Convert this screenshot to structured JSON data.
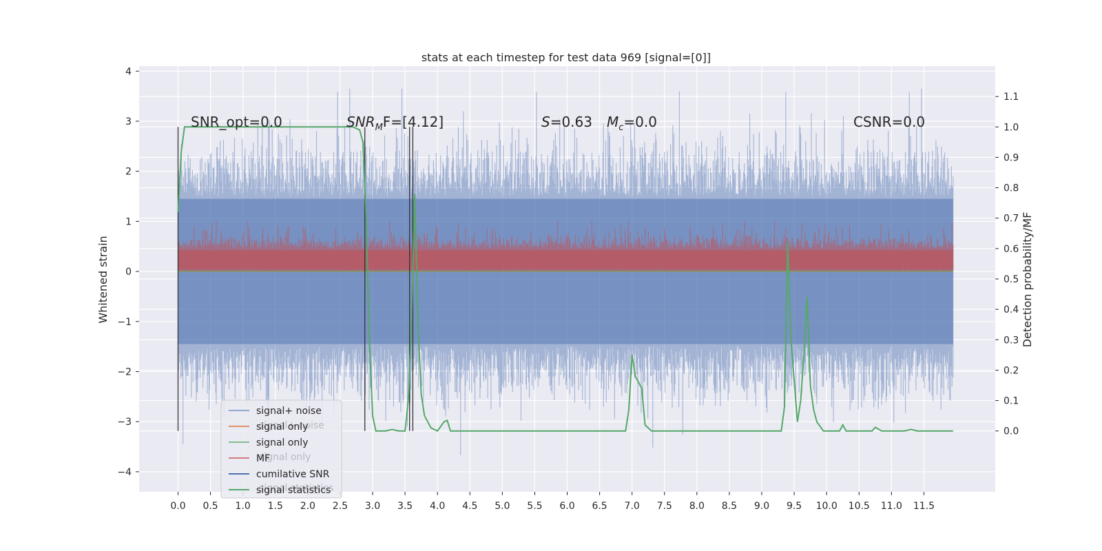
{
  "chart_data": {
    "type": "line",
    "title": "stats at each timestep for test data 969 [signal=[0]]",
    "xlabel": "",
    "ylabel": "Whitened strain",
    "y2label": "Detection probability/MF",
    "xlim": [
      -0.6,
      12.6
    ],
    "ylim": [
      -4.4,
      4.1
    ],
    "y2lim": [
      -0.2,
      1.2
    ],
    "xticks": [
      0.0,
      0.5,
      1.0,
      1.5,
      2.0,
      2.5,
      3.0,
      3.5,
      4.0,
      4.5,
      5.0,
      5.5,
      6.0,
      6.5,
      7.0,
      7.5,
      8.0,
      8.5,
      9.0,
      9.5,
      10.0,
      10.5,
      11.0,
      11.5
    ],
    "xtick_labels": [
      "0.0",
      "0.5",
      "1.0",
      "1.5",
      "2.0",
      "2.5",
      "3.0",
      "3.5",
      "4.0",
      "4.5",
      "5.0",
      "5.5",
      "6.0",
      "6.5",
      "7.0",
      "7.5",
      "8.0",
      "8.5",
      "9.0",
      "9.5",
      "10.0",
      "10.5",
      "11.0",
      "11.5"
    ],
    "yticks": [
      -4,
      -3,
      -2,
      -1,
      0,
      1,
      2,
      3,
      4
    ],
    "ytick_labels": [
      "−4",
      "−3",
      "−2",
      "−1",
      "0",
      "1",
      "2",
      "3",
      "4"
    ],
    "y2ticks": [
      0.0,
      0.1,
      0.2,
      0.3,
      0.4,
      0.5,
      0.6,
      0.7,
      0.8,
      0.9,
      1.0,
      1.1
    ],
    "y2tick_labels": [
      "0.0",
      "0.1",
      "0.2",
      "0.3",
      "0.4",
      "0.5",
      "0.6",
      "0.7",
      "0.8",
      "0.9",
      "1.0",
      "1.1"
    ],
    "grid": true,
    "legend_placement": "lower-left",
    "colors": {
      "background": "#eaeaf2",
      "grid": "#ffffff",
      "signal_noise": "#4c72b0",
      "signal_only_orange": "#dd8452",
      "signal_only_green": "#55a868",
      "mf": "#c44e52",
      "cumulative_snr": "#4c72b0",
      "signal_statistics": "#55a868",
      "markers": "#333333"
    },
    "series": [
      {
        "name": "signal+ noise",
        "style": "dense noise, roughly ±2.5 with spikes to ±3.6",
        "x_range": [
          0.0,
          11.95
        ]
      },
      {
        "name": "signal only",
        "values_constant": 0.0
      },
      {
        "name": "signal only",
        "values_constant": 0.0
      },
      {
        "name": "MF",
        "style": "dense noise from 0 to ~0.5 with spikes to ~1.0",
        "x_range": [
          0.0,
          11.95
        ]
      },
      {
        "name": "cumilative SNR"
      },
      {
        "name": "signal statistics",
        "axis": "right",
        "x": [
          0.0,
          0.05,
          0.1,
          0.2,
          0.3,
          0.5,
          1.0,
          1.5,
          2.0,
          2.5,
          2.7,
          2.8,
          2.85,
          2.9,
          2.95,
          3.0,
          3.05,
          3.1,
          3.2,
          3.3,
          3.4,
          3.5,
          3.55,
          3.6,
          3.65,
          3.7,
          3.75,
          3.8,
          3.9,
          4.0,
          4.1,
          4.15,
          4.2,
          4.3,
          5.0,
          6.0,
          6.9,
          6.95,
          7.0,
          7.05,
          7.1,
          7.15,
          7.2,
          7.3,
          7.6,
          7.8,
          8.0,
          9.0,
          9.3,
          9.35,
          9.4,
          9.45,
          9.55,
          9.6,
          9.65,
          9.7,
          9.75,
          9.8,
          9.85,
          9.95,
          10.1,
          10.2,
          10.25,
          10.3,
          10.5,
          10.7,
          10.75,
          10.85,
          11.2,
          11.3,
          11.4,
          11.95
        ],
        "y": [
          0.72,
          0.92,
          1.0,
          1.0,
          1.0,
          1.0,
          1.0,
          1.0,
          1.0,
          1.0,
          1.0,
          0.99,
          0.95,
          0.7,
          0.3,
          0.05,
          0.0,
          0.0,
          0.0,
          0.005,
          0.0,
          0.0,
          0.1,
          0.35,
          0.78,
          0.35,
          0.12,
          0.05,
          0.01,
          0.0,
          0.03,
          0.035,
          0.0,
          0.0,
          0.0,
          0.0,
          0.0,
          0.07,
          0.25,
          0.18,
          0.16,
          0.14,
          0.02,
          0.0,
          0.0,
          0.0,
          0.0,
          0.0,
          0.0,
          0.08,
          0.62,
          0.3,
          0.03,
          0.1,
          0.25,
          0.44,
          0.15,
          0.07,
          0.03,
          0.0,
          0.0,
          0.0,
          0.02,
          0.0,
          0.0,
          0.0,
          0.012,
          0.0,
          0.0,
          0.005,
          0.0,
          0.0
        ]
      }
    ],
    "vertical_markers_x": [
      0.0,
      2.88,
      3.57,
      3.62
    ],
    "annotations": [
      {
        "text": "SNR_opt=0.0"
      },
      {
        "text": "SNR_MF=[4.12]",
        "main": "SNR",
        "sub": "M",
        "rest": "F=[4.12]"
      },
      {
        "text": "S=0.63",
        "italic": "S",
        "rest": "=0.63"
      },
      {
        "text": "M_c=0.0",
        "italic": "M",
        "sub": "c",
        "rest": "=0.0"
      },
      {
        "text": "CSNR=0.0"
      }
    ],
    "legend": [
      {
        "label": "signal+ noise",
        "color": "#4c72b0",
        "alpha": 0.55
      },
      {
        "label": "signal only",
        "color": "#dd8452",
        "alpha": 0.85
      },
      {
        "label": "signal only",
        "color": "#55a868",
        "alpha": 0.7
      },
      {
        "label": "MF",
        "color": "#c44e52",
        "alpha": 0.7
      },
      {
        "label": "cumilative SNR",
        "color": "#4c72b0",
        "alpha": 1.0
      },
      {
        "label": "signal statistics",
        "color": "#55a868",
        "alpha": 1.0
      }
    ],
    "legend_ghost_labels": [
      "signal+ noise",
      "signal only",
      "signal statistics"
    ]
  }
}
